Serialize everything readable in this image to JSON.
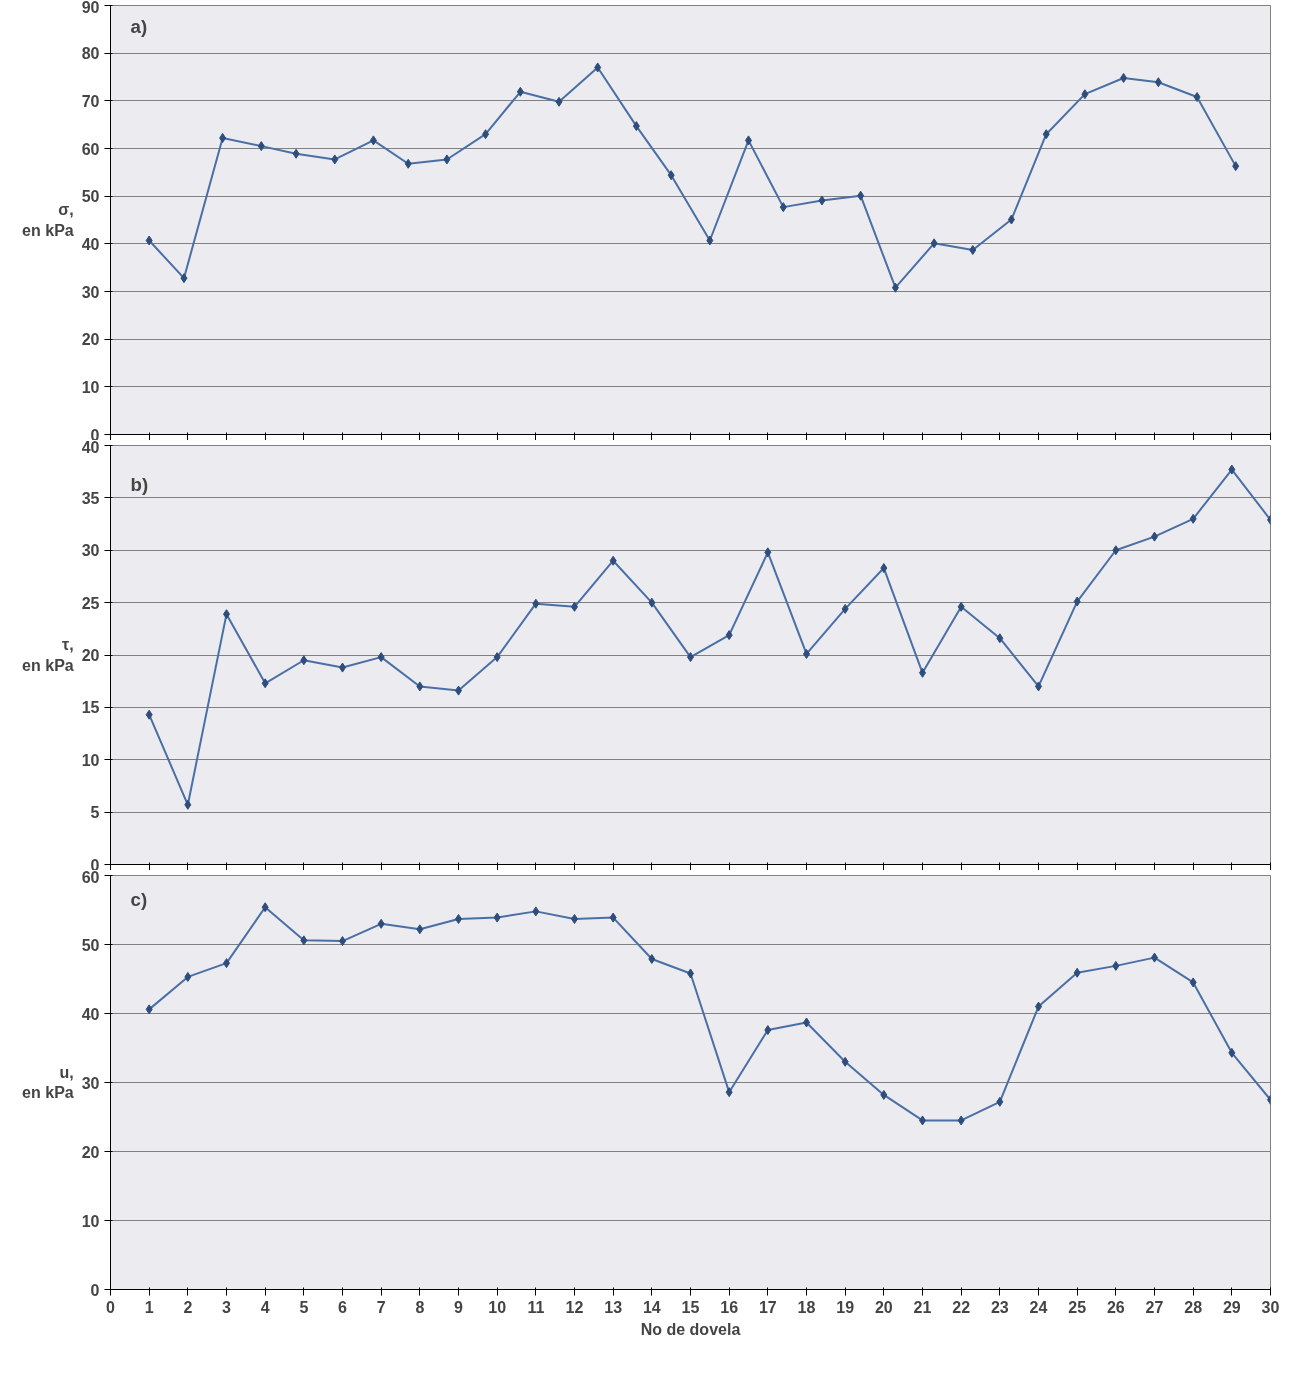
{
  "chart_data": [
    {
      "type": "line",
      "ylabel": "σ,\nen kPa",
      "annotations": [
        "a)"
      ],
      "xlim": [
        0,
        30
      ],
      "xticks": [
        0,
        1,
        2,
        3,
        4,
        5,
        6,
        7,
        8,
        9,
        10,
        11,
        12,
        13,
        14,
        15,
        16,
        17,
        18,
        19,
        20,
        21,
        22,
        23,
        24,
        25,
        26,
        27,
        28,
        29,
        30
      ],
      "ylim": [
        0,
        90
      ],
      "yticks": [
        0,
        10,
        20,
        30,
        40,
        50,
        60,
        70,
        80,
        90
      ],
      "grid": "y",
      "marker": "diamond",
      "tick_labels": "y",
      "x": [
        1.0,
        1.9,
        2.9,
        3.9,
        4.8,
        5.8,
        6.8,
        7.7,
        8.7,
        9.7,
        10.6,
        11.6,
        12.6,
        13.6,
        14.5,
        15.5,
        16.5,
        17.4,
        18.4,
        19.4,
        20.3,
        21.3,
        22.3,
        23.3,
        24.2,
        25.2,
        26.2,
        27.1,
        28.1,
        29.1
      ],
      "series": [
        {
          "color": "#4a6fa5",
          "values": [
            40.7,
            32.8,
            62.2,
            60.5,
            58.9,
            57.7,
            61.7,
            56.8,
            57.7,
            63,
            71.9,
            69.8,
            77,
            64.7,
            54.4,
            40.7,
            61.7,
            47.7,
            49.1,
            50.1,
            30.8,
            40.1,
            38.7,
            45.1,
            63,
            71.4,
            74.8,
            73.9,
            70.8,
            56.3
          ]
        }
      ]
    },
    {
      "type": "line",
      "ylabel": "τ,\nen kPa",
      "annotations": [
        "b)"
      ],
      "xlim": [
        0,
        30
      ],
      "xticks": [
        0,
        1,
        2,
        3,
        4,
        5,
        6,
        7,
        8,
        9,
        10,
        11,
        12,
        13,
        14,
        15,
        16,
        17,
        18,
        19,
        20,
        21,
        22,
        23,
        24,
        25,
        26,
        27,
        28,
        29,
        30
      ],
      "ylim": [
        0,
        40
      ],
      "yticks": [
        0,
        5,
        10,
        15,
        20,
        25,
        30,
        35,
        40
      ],
      "grid": "y",
      "marker": "diamond",
      "tick_labels": "y",
      "x": [
        1,
        2,
        3,
        4,
        5,
        6,
        7,
        8,
        9,
        10,
        11,
        12,
        13,
        14,
        15,
        16,
        17,
        18,
        19,
        20,
        21,
        22,
        23,
        24,
        25,
        26,
        27,
        28,
        29,
        30
      ],
      "series": [
        {
          "color": "#4a6fa5",
          "values": [
            14.3,
            5.7,
            23.9,
            17.3,
            19.5,
            18.8,
            19.8,
            17.0,
            16.6,
            19.8,
            24.9,
            24.6,
            29.0,
            25.0,
            19.8,
            21.9,
            29.8,
            20.1,
            24.4,
            28.3,
            18.3,
            24.6,
            21.6,
            17.0,
            25.1,
            30.0,
            31.3,
            33.0,
            37.7,
            32.9
          ]
        }
      ]
    },
    {
      "type": "line",
      "ylabel": "u,\nen kPa",
      "xlabel": "No de dovela",
      "annotations": [
        "c)"
      ],
      "xlim": [
        0,
        30
      ],
      "xticks": [
        0,
        1,
        2,
        3,
        4,
        5,
        6,
        7,
        8,
        9,
        10,
        11,
        12,
        13,
        14,
        15,
        16,
        17,
        18,
        19,
        20,
        21,
        22,
        23,
        24,
        25,
        26,
        27,
        28,
        29,
        30
      ],
      "ylim": [
        0,
        60
      ],
      "yticks": [
        0,
        10,
        20,
        30,
        40,
        50,
        60
      ],
      "grid": "y",
      "marker": "diamond",
      "x": [
        1,
        2,
        3,
        4,
        5,
        6,
        7,
        8,
        9,
        10,
        11,
        12,
        13,
        14,
        15,
        16,
        17,
        18,
        19,
        20,
        21,
        22,
        23,
        24,
        25,
        26,
        27,
        28,
        29,
        30
      ],
      "series": [
        {
          "color": "#4a6fa5",
          "values": [
            40.6,
            45.3,
            47.3,
            55.4,
            50.6,
            50.5,
            53.0,
            52.2,
            53.7,
            53.9,
            54.8,
            53.7,
            53.9,
            47.9,
            45.8,
            28.6,
            37.6,
            38.7,
            33.0,
            28.2,
            24.5,
            24.5,
            27.2,
            41.0,
            45.9,
            46.9,
            48.1,
            44.5,
            34.3,
            27.5
          ]
        }
      ]
    }
  ]
}
